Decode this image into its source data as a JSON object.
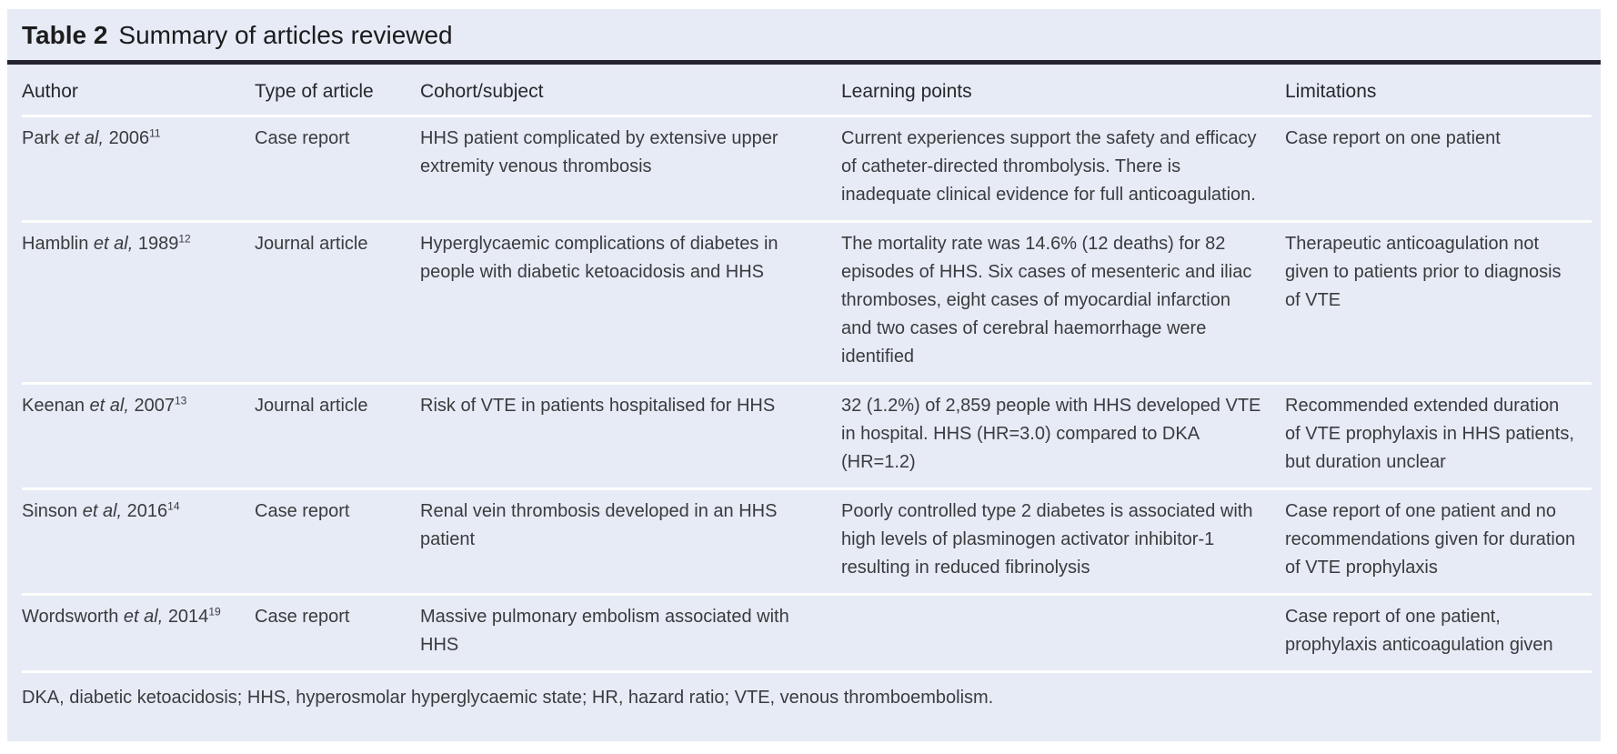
{
  "table": {
    "label": "Table 2",
    "title": "Summary of articles reviewed",
    "columns": [
      "Author",
      "Type of article",
      "Cohort/subject",
      "Learning points",
      "Limitations"
    ],
    "rows": [
      {
        "author_name": "Park",
        "author_etal": "et al,",
        "author_year": "2006",
        "author_ref": "11",
        "type": "Case report",
        "cohort": "HHS patient complicated by extensive upper extremity venous thrombosis",
        "learning": "Current experiences support the safety and efficacy of catheter-directed thrombolysis. There is inadequate clinical evidence for full anticoagulation.",
        "limitations": "Case report on one patient"
      },
      {
        "author_name": "Hamblin",
        "author_etal": "et al,",
        "author_year": "1989",
        "author_ref": "12",
        "type": "Journal article",
        "cohort": "Hyperglycaemic complications of diabetes in people with diabetic ketoacidosis and HHS",
        "learning": "The mortality rate was 14.6% (12 deaths) for 82 episodes of HHS. Six cases of mesenteric and iliac thromboses, eight cases of myocardial infarction and two cases of cerebral haemorrhage were identified",
        "limitations": "Therapeutic anticoagulation not given to patients prior to diagnosis of VTE"
      },
      {
        "author_name": "Keenan",
        "author_etal": "et al,",
        "author_year": "2007",
        "author_ref": "13",
        "type": "Journal article",
        "cohort": "Risk of VTE in patients hospitalised for HHS",
        "learning": "32 (1.2%) of 2,859 people with HHS developed VTE in hospital. HHS (HR=3.0) compared to DKA (HR=1.2)",
        "limitations": "Recommended extended duration of VTE prophylaxis in HHS patients, but duration unclear"
      },
      {
        "author_name": "Sinson",
        "author_etal": "et al,",
        "author_year": "2016",
        "author_ref": "14",
        "type": "Case report",
        "cohort": "Renal vein thrombosis developed in an HHS patient",
        "learning": "Poorly controlled type 2 diabetes is associated with high levels of plasminogen activator inhibitor-1 resulting in reduced fibrinolysis",
        "limitations": "Case report of one patient and no recommendations given for duration of VTE prophylaxis"
      },
      {
        "author_name": "Wordsworth",
        "author_etal": "et al,",
        "author_year": "2014",
        "author_ref": "19",
        "type": "Case report",
        "cohort": "Massive pulmonary embolism associated with HHS",
        "learning": "",
        "limitations": "Case report of one patient, prophylaxis anticoagulation given"
      }
    ],
    "footnote": "DKA, diabetic ketoacidosis; HHS, hyperosmolar hyperglycaemic state; HR, hazard ratio; VTE, venous thromboembolism."
  }
}
